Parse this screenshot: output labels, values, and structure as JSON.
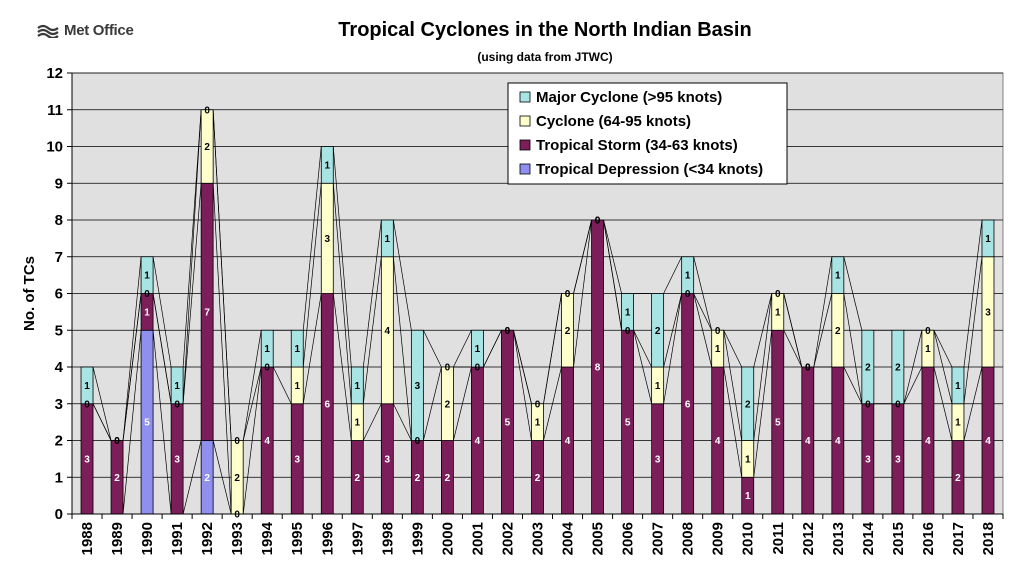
{
  "logo": {
    "text": "Met Office"
  },
  "chart_data": {
    "type": "bar",
    "stacked": true,
    "title": "Tropical Cyclones in the North Indian Basin",
    "subtitle": "(using data from JTWC)",
    "xlabel": "",
    "ylabel": "No. of TCs",
    "ylim": [
      0,
      12
    ],
    "yticks": [
      0,
      1,
      2,
      3,
      4,
      5,
      6,
      7,
      8,
      9,
      10,
      11,
      12
    ],
    "grid": true,
    "legend_position": "top-right",
    "categories": [
      "1988",
      "1989",
      "1990",
      "1991",
      "1992",
      "1993",
      "1994",
      "1995",
      "1996",
      "1997",
      "1998",
      "1999",
      "2000",
      "2001",
      "2002",
      "2003",
      "2004",
      "2005",
      "2006",
      "2007",
      "2008",
      "2009",
      "2010",
      "2011",
      "2012",
      "2013",
      "2014",
      "2015",
      "2016",
      "2017",
      "2018"
    ],
    "series": [
      {
        "name": "Tropical Depression (<34 knots)",
        "color": "#8f8fef",
        "values": [
          0,
          0,
          5,
          0,
          2,
          0,
          0,
          0,
          0,
          0,
          0,
          0,
          0,
          0,
          0,
          0,
          0,
          0,
          0,
          0,
          0,
          0,
          0,
          0,
          0,
          0,
          0,
          0,
          0,
          0,
          0
        ]
      },
      {
        "name": "Tropical Storm (34-63 knots)",
        "color": "#7b1e5a",
        "values": [
          3,
          2,
          1,
          3,
          7,
          0,
          4,
          3,
          6,
          2,
          3,
          2,
          2,
          4,
          5,
          2,
          4,
          8,
          5,
          3,
          6,
          4,
          1,
          5,
          4,
          4,
          3,
          3,
          4,
          2,
          4
        ]
      },
      {
        "name": "Cyclone (64-95 knots)",
        "color": "#ffffcc",
        "values": [
          0,
          0,
          0,
          0,
          2,
          2,
          0,
          1,
          3,
          1,
          4,
          0,
          2,
          0,
          0,
          1,
          2,
          0,
          0,
          1,
          0,
          1,
          1,
          1,
          0,
          2,
          0,
          0,
          1,
          1,
          3
        ]
      },
      {
        "name": "Major Cyclone (>95 knots)",
        "color": "#a8e4e4",
        "values": [
          1,
          0,
          1,
          1,
          0,
          0,
          1,
          1,
          1,
          1,
          1,
          3,
          0,
          1,
          0,
          0,
          0,
          0,
          1,
          2,
          1,
          0,
          2,
          0,
          0,
          1,
          2,
          2,
          0,
          1,
          1
        ]
      }
    ],
    "legend_order": [
      3,
      2,
      1,
      0
    ]
  }
}
